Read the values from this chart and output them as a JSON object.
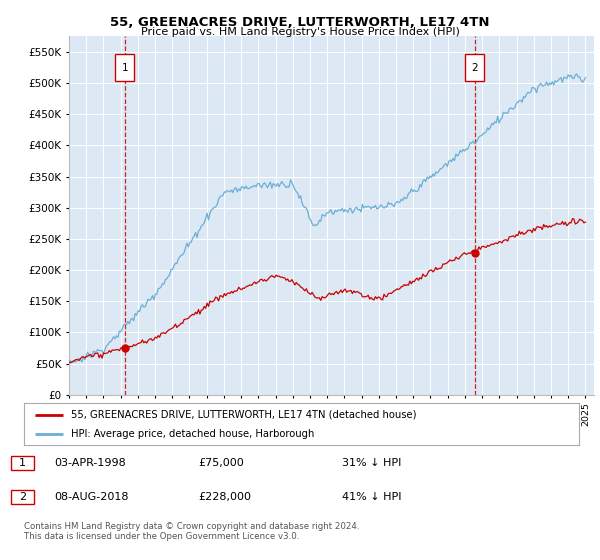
{
  "title": "55, GREENACRES DRIVE, LUTTERWORTH, LE17 4TN",
  "subtitle": "Price paid vs. HM Land Registry's House Price Index (HPI)",
  "legend_line1": "55, GREENACRES DRIVE, LUTTERWORTH, LE17 4TN (detached house)",
  "legend_line2": "HPI: Average price, detached house, Harborough",
  "annotation1_label": "1",
  "annotation1_date": "03-APR-1998",
  "annotation1_price": "£75,000",
  "annotation1_hpi": "31% ↓ HPI",
  "annotation2_label": "2",
  "annotation2_date": "08-AUG-2018",
  "annotation2_price": "£228,000",
  "annotation2_hpi": "41% ↓ HPI",
  "footnote": "Contains HM Land Registry data © Crown copyright and database right 2024.\nThis data is licensed under the Open Government Licence v3.0.",
  "hpi_color": "#6baed6",
  "price_color": "#cc0000",
  "marker_color": "#cc0000",
  "dashed_line_color": "#cc0000",
  "background_color": "#dce9f5",
  "ylim": [
    0,
    575000
  ],
  "yticks": [
    0,
    50000,
    100000,
    150000,
    200000,
    250000,
    300000,
    350000,
    400000,
    450000,
    500000,
    550000
  ],
  "ytick_labels": [
    "£0",
    "£50K",
    "£100K",
    "£150K",
    "£200K",
    "£250K",
    "£300K",
    "£350K",
    "£400K",
    "£450K",
    "£500K",
    "£550K"
  ],
  "sale1_x": 1998.25,
  "sale1_y": 75000,
  "sale2_x": 2018.58,
  "sale2_y": 228000,
  "xlim_left": 1995.0,
  "xlim_right": 2025.5
}
